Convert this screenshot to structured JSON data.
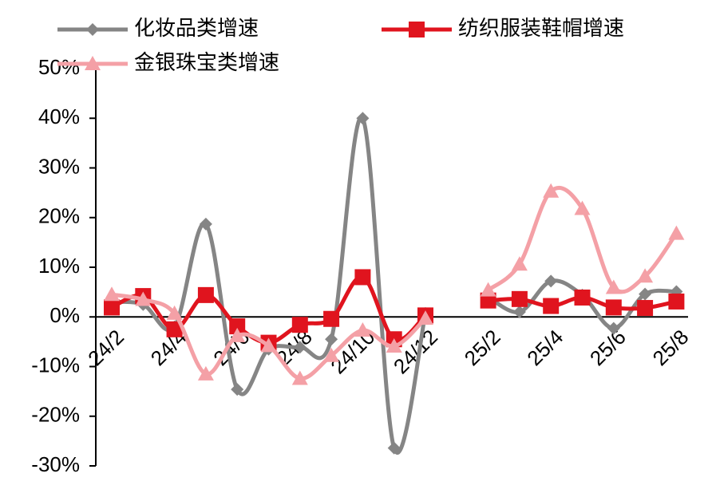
{
  "chart_data": {
    "type": "line",
    "categories": [
      "24/2",
      null,
      "24/4",
      null,
      "24/6",
      null,
      "24/8",
      null,
      "24/10",
      null,
      "24/12",
      null,
      "25/2",
      null,
      "25/4",
      null,
      "25/6",
      null,
      "25/8"
    ],
    "series": [
      {
        "name": "化妆品类增速",
        "color": "#858585",
        "marker": "diamond",
        "values": [
          3,
          2.5,
          -2,
          18.7,
          -14.6,
          -6.5,
          -6.1,
          -4.5,
          40,
          -26.4,
          0.7,
          null,
          4,
          1,
          7.2,
          4.4,
          -2.3,
          4.6,
          5.1
        ]
      },
      {
        "name": "纺织服装鞋帽增速",
        "color": "#e0141e",
        "marker": "square",
        "values": [
          1.9,
          4.2,
          -2.5,
          4.4,
          -1.9,
          -5.2,
          -1.6,
          -0.4,
          8,
          -4.5,
          0.3,
          null,
          3.3,
          3.6,
          2.2,
          3.9,
          1.9,
          1.8,
          3.1
        ]
      },
      {
        "name": "金银珠宝类增速",
        "color": "#f4a0a6",
        "marker": "triangle",
        "values": [
          4.5,
          3.5,
          0.7,
          -11.5,
          -3.8,
          -5.8,
          -12.4,
          -7.8,
          -2.7,
          -5.9,
          -0.3,
          null,
          5.4,
          10.6,
          25.3,
          21.8,
          5.9,
          8.2,
          16.8
        ]
      }
    ],
    "ylim": [
      -30,
      50
    ],
    "yticks": [
      {
        "value": -30,
        "label": "-30%"
      },
      {
        "value": -20,
        "label": "-20%"
      },
      {
        "value": -10,
        "label": "-10%"
      },
      {
        "value": 0,
        "label": "0%"
      },
      {
        "value": 10,
        "label": "10%"
      },
      {
        "value": 20,
        "label": "20%"
      },
      {
        "value": 30,
        "label": "30%"
      },
      {
        "value": 40,
        "label": "40%"
      },
      {
        "value": 50,
        "label": "50%"
      }
    ]
  }
}
